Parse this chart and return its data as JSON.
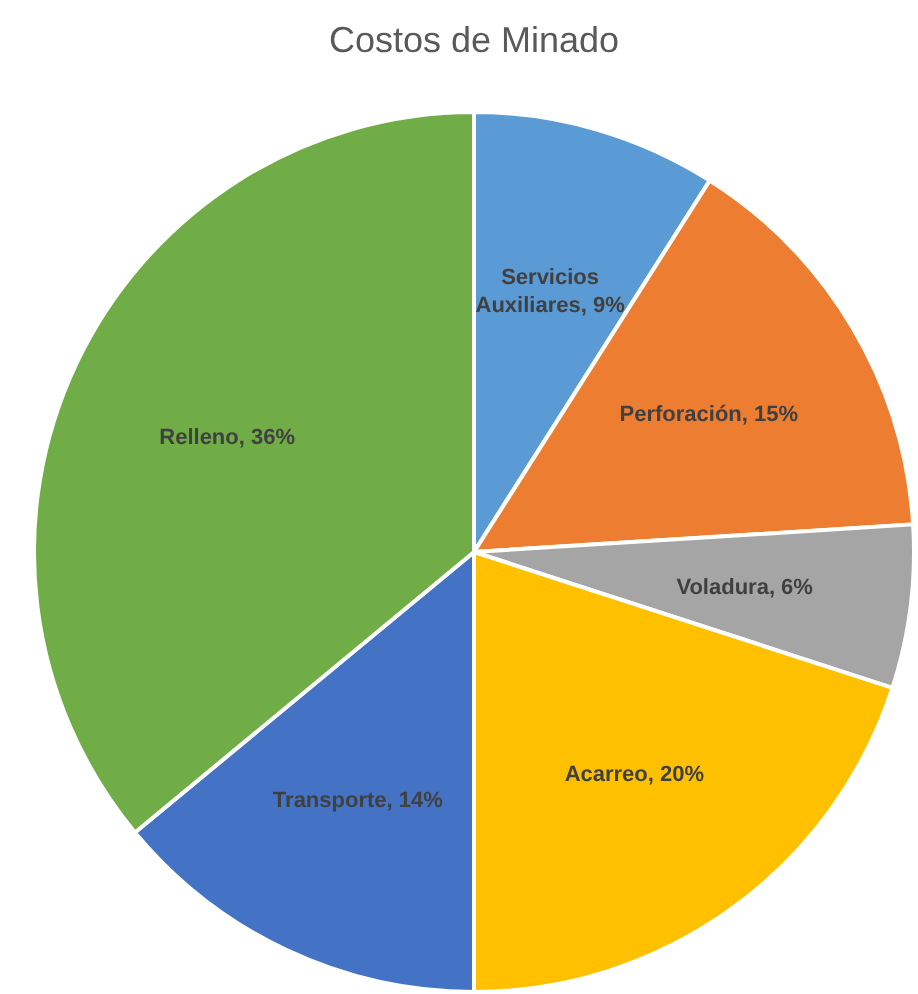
{
  "chart_data": {
    "type": "pie",
    "title": "Costos de Minado",
    "categories": [
      "Servicios Auxiliares",
      "Perforación",
      "Voladura",
      "Acarreo",
      "Transporte",
      "Relleno"
    ],
    "values": [
      9,
      15,
      6,
      20,
      14,
      36
    ],
    "colors": [
      "#5b9bd5",
      "#ed7d31",
      "#a5a5a5",
      "#ffc000",
      "#4472c4",
      "#70ad47"
    ],
    "value_labels": [
      "9%",
      "15%",
      "6%",
      "20%",
      "14%",
      "36%"
    ]
  }
}
